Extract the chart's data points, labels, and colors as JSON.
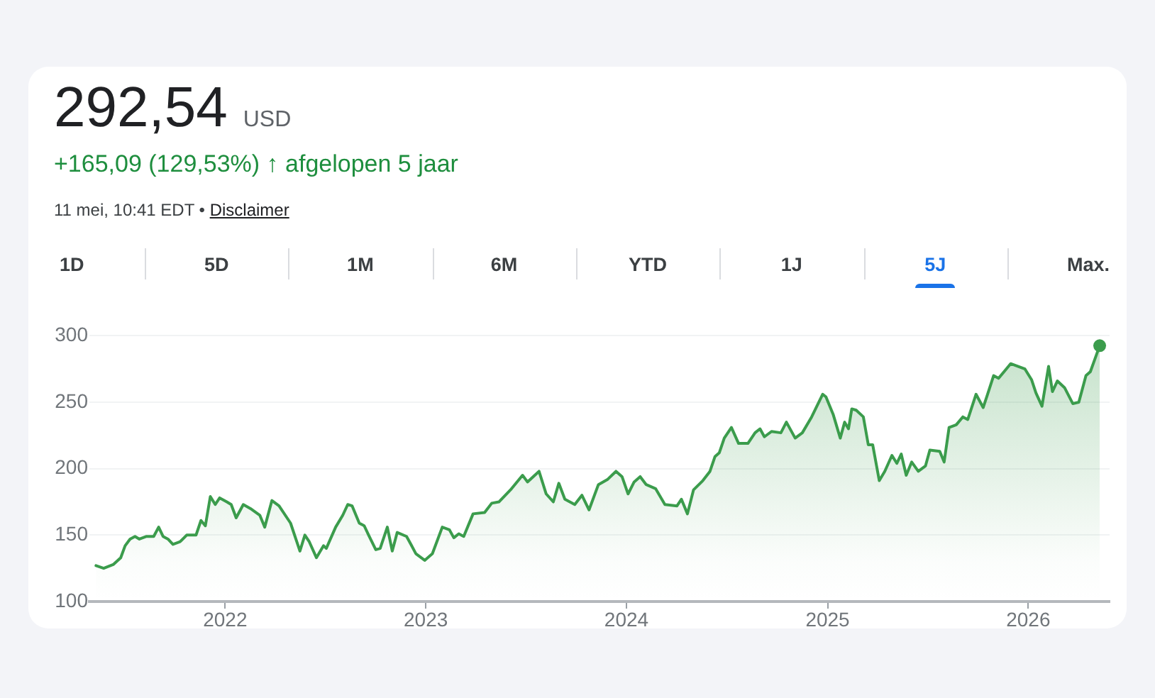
{
  "chart_data": {
    "type": "area",
    "title": "292,54 USD",
    "subtitle": "+165,09 (129,53%) ↑ afgelopen 5 jaar",
    "annotations": [
      "11 mei, 10:41 EDT •",
      "Disclaimer",
      "1D",
      "5D",
      "1M",
      "6M",
      "YTD",
      "1J",
      "5J",
      "Max."
    ],
    "x": [
      "2021-05-11",
      "2021-05-25",
      "2021-06-12",
      "2021-06-25",
      "2021-07-03",
      "2021-07-12",
      "2021-07-21",
      "2021-07-29",
      "2021-08-11",
      "2021-08-24",
      "2021-09-02",
      "2021-09-10",
      "2021-09-19",
      "2021-09-28",
      "2021-10-11",
      "2021-10-23",
      "2021-11-09",
      "2021-11-18",
      "2021-11-26",
      "2021-12-05",
      "2021-12-14",
      "2021-12-22",
      "2022-01-04",
      "2022-01-12",
      "2022-01-21",
      "2022-02-03",
      "2022-02-16",
      "2022-03-05",
      "2022-03-14",
      "2022-03-27",
      "2022-04-09",
      "2022-04-30",
      "2022-05-17",
      "2022-05-26",
      "2022-06-03",
      "2022-06-16",
      "2022-06-29",
      "2022-07-04",
      "2022-07-21",
      "2022-08-03",
      "2022-08-12",
      "2022-08-20",
      "2022-09-02",
      "2022-09-11",
      "2022-09-19",
      "2022-10-02",
      "2022-10-10",
      "2022-10-23",
      "2022-11-01",
      "2022-11-10",
      "2022-11-27",
      "2022-12-05",
      "2022-12-14",
      "2022-12-30",
      "2023-01-13",
      "2023-01-31",
      "2023-02-13",
      "2023-02-21",
      "2023-03-02",
      "2023-03-11",
      "2023-03-28",
      "2023-04-18",
      "2023-05-01",
      "2023-05-14",
      "2023-06-04",
      "2023-06-26",
      "2023-07-05",
      "2023-07-26",
      "2023-08-08",
      "2023-08-21",
      "2023-08-31",
      "2023-09-11",
      "2023-09-29",
      "2023-10-12",
      "2023-10-25",
      "2023-11-11",
      "2023-11-28",
      "2023-12-13",
      "2023-12-24",
      "2024-01-04",
      "2024-01-15",
      "2024-01-26",
      "2024-02-06",
      "2024-02-23",
      "2024-03-11",
      "2024-04-02",
      "2024-04-10",
      "2024-04-21",
      "2024-05-02",
      "2024-05-19",
      "2024-06-01",
      "2024-06-10",
      "2024-06-18",
      "2024-06-27",
      "2024-07-10",
      "2024-07-23",
      "2024-08-09",
      "2024-08-22",
      "2024-08-31",
      "2024-09-08",
      "2024-09-21",
      "2024-10-08",
      "2024-10-18",
      "2024-11-03",
      "2024-11-16",
      "2024-12-03",
      "2024-12-23",
      "2024-12-29",
      "2025-01-11",
      "2025-01-24",
      "2025-02-01",
      "2025-02-08",
      "2025-02-14",
      "2025-02-22",
      "2025-03-07",
      "2025-03-16",
      "2025-03-24",
      "2025-04-05",
      "2025-04-15",
      "2025-04-28",
      "2025-05-07",
      "2025-05-15",
      "2025-05-24",
      "2025-06-03",
      "2025-06-15",
      "2025-06-28",
      "2025-07-06",
      "2025-07-24",
      "2025-08-01",
      "2025-08-10",
      "2025-08-23",
      "2025-09-04",
      "2025-09-13",
      "2025-09-28",
      "2025-10-11",
      "2025-10-19",
      "2025-10-30",
      "2025-11-08",
      "2025-11-18",
      "2025-11-30",
      "2025-12-13",
      "2025-12-26",
      "2026-01-07",
      "2026-01-15",
      "2026-01-26",
      "2026-02-07",
      "2026-02-14",
      "2026-02-23",
      "2026-03-08",
      "2026-03-23",
      "2026-04-03",
      "2026-04-16",
      "2026-04-24",
      "2026-05-11"
    ],
    "series": [
      {
        "color": "#3b9c4c",
        "values": [
          127,
          125,
          128,
          133,
          142,
          147,
          149,
          147,
          149,
          149,
          156,
          149,
          147,
          143,
          145,
          150,
          150,
          161,
          157,
          179,
          173,
          178,
          175,
          173,
          163,
          173,
          170,
          165,
          156,
          176,
          172,
          159,
          138,
          150,
          145,
          133,
          142,
          140,
          156,
          165,
          173,
          172,
          159,
          157,
          150,
          139,
          140,
          156,
          138,
          152,
          149,
          143,
          136,
          131,
          136,
          156,
          154,
          148,
          151,
          149,
          166,
          167,
          174,
          175,
          184,
          195,
          190,
          198,
          181,
          175,
          189,
          177,
          173,
          180,
          169,
          188,
          192,
          198,
          194,
          181,
          190,
          194,
          188,
          185,
          173,
          172,
          177,
          166,
          184,
          191,
          198,
          209,
          212,
          223,
          231,
          219,
          219,
          227,
          230,
          224,
          228,
          227,
          235,
          223,
          227,
          239,
          256,
          254,
          241,
          223,
          235,
          230,
          245,
          244,
          239,
          218,
          218,
          191,
          198,
          210,
          204,
          211,
          195,
          205,
          198,
          202,
          214,
          213,
          205,
          231,
          233,
          239,
          237,
          256,
          246,
          256,
          270,
          268,
          273,
          279,
          277,
          275,
          267,
          257,
          247,
          277,
          258,
          266,
          261,
          249,
          250,
          270,
          273,
          292.54
        ]
      },
      {
        "type": "scatter",
        "color": "#3b9c4c",
        "marker": "circle",
        "x": [
          "2026-05-11"
        ],
        "values": [
          292.54
        ]
      }
    ],
    "xlim": [
      "2021-04-29",
      "2026-05-29"
    ],
    "xticks": [
      "2022",
      "2023",
      "2024",
      "2025",
      "2026"
    ],
    "ylim": [
      100,
      300
    ],
    "yticks": [
      100,
      150,
      200,
      250,
      300
    ],
    "grid": "y"
  }
}
